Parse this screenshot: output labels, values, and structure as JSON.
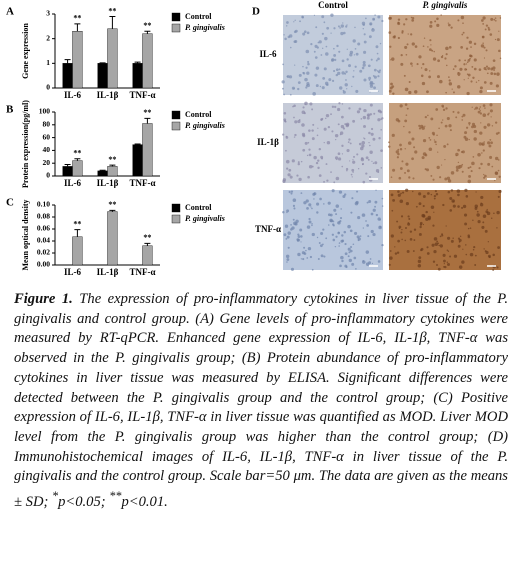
{
  "chart_data": [
    {
      "type": "bar",
      "label": "A",
      "y_label": "Gene expression",
      "categories": [
        "IL-6",
        "IL-1β",
        "TNF-α"
      ],
      "series": [
        {
          "name": "Control",
          "color": "#000000",
          "values": [
            1,
            1,
            1
          ],
          "errors": [
            0.15,
            0.02,
            0.05
          ]
        },
        {
          "name": "P. gingivalis",
          "color": "#a6a6a6",
          "values": [
            2.3,
            2.4,
            2.2
          ],
          "errors": [
            0.3,
            0.5,
            0.1
          ]
        }
      ],
      "annotations": [
        "**",
        "**",
        "**"
      ],
      "ylim": [
        0,
        3
      ],
      "yticks": [
        0,
        1,
        2,
        3
      ],
      "grid": false
    },
    {
      "type": "bar",
      "label": "B",
      "y_label": "Protein expression(pg/ml)",
      "categories": [
        "IL-6",
        "IL-1β",
        "TNF-α"
      ],
      "series": [
        {
          "name": "Control",
          "color": "#000000",
          "values": [
            15,
            8,
            49
          ],
          "errors": [
            3,
            1,
            1
          ]
        },
        {
          "name": "P. gingivalis",
          "color": "#a6a6a6",
          "values": [
            24,
            15,
            82
          ],
          "errors": [
            3,
            2,
            8
          ]
        }
      ],
      "annotations": [
        "**",
        "**",
        "**"
      ],
      "ylim": [
        0,
        100
      ],
      "yticks": [
        0,
        20,
        40,
        60,
        80,
        100
      ],
      "grid": false
    },
    {
      "type": "bar",
      "label": "C",
      "y_label": "Mean optical density",
      "categories": [
        "IL-6",
        "IL-1β",
        "TNF-α"
      ],
      "series": [
        {
          "name": "Control",
          "color": "#000000",
          "values": [
            0,
            0,
            0
          ],
          "errors": [
            0,
            0,
            0
          ]
        },
        {
          "name": "P. gingivalis",
          "color": "#a6a6a6",
          "values": [
            0.047,
            0.089,
            0.032
          ],
          "errors": [
            0.012,
            0.002,
            0.004
          ]
        }
      ],
      "annotations": [
        "**",
        "**",
        "**"
      ],
      "ylim": [
        0,
        0.1
      ],
      "yticks": [
        {
          "value": 0,
          "label": "0.00"
        },
        {
          "value": 0.02,
          "label": "0.02"
        },
        {
          "value": 0.04,
          "label": "0.04"
        },
        {
          "value": 0.06,
          "label": "0.06"
        },
        {
          "value": 0.08,
          "label": "0.08"
        },
        {
          "value": 0.1,
          "label": "0.10"
        }
      ],
      "grid": false
    }
  ],
  "panel_d": {
    "label": "D",
    "columns": [
      "Control",
      "P. gingivalis"
    ],
    "rows": [
      "IL-6",
      "IL-1β",
      "TNF-α"
    ]
  },
  "caption": {
    "label": "Figure 1.",
    "parts": [
      " The expression of pro-inflammatory cytokines in liver tissue of the P. gingivalis and control group. (A) Gene levels of pro-inflammatory cytokines were measured by RT-qPCR. Enhanced gene expression of IL-6, IL-1β, TNF-α was observed in the P. gingivalis group; (B) Protein abundance of pro-inflammatory cytokines in liver tissue was measured by ELISA. Significant differences were detected between the P. gingivalis group and the control group; (C) Positive expression of IL-6, IL-1β, TNF-α in liver tissue was quantified as MOD. Liver MOD level from the P. gingivalis group was higher than the control group; (D) Immunohistochemical images of IL-6, IL-1β, TNF-α in liver tissue of the P. gingivalis and the control group. Scale bar=50 μm. The data are given as the means ± SD; ",
      "*",
      "p<0.05; ",
      "**",
      "p<0.01."
    ]
  }
}
